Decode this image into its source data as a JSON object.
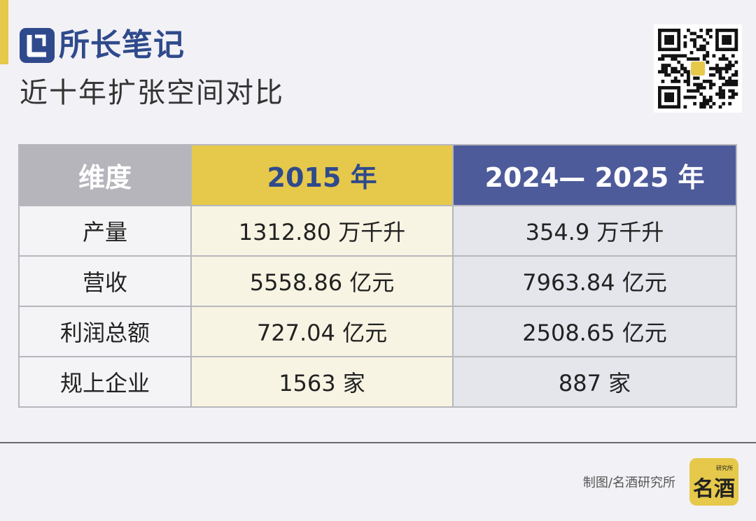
{
  "header": {
    "brand": "所长笔记",
    "subtitle": "近十年扩张空间对比",
    "accent_color": "#e6c84a",
    "brand_color": "#2f4a8c",
    "brand_icon": "brand-mark-icon",
    "qr_icon": "qr-code-icon"
  },
  "table": {
    "headers": [
      "维度",
      "2015 年",
      "2024— 2025 年"
    ],
    "header_colors": [
      "#b6b5bb",
      "#e6c84a",
      "#4d5b9a"
    ],
    "rows": [
      {
        "dim": "产量",
        "y2015": "1312.80 万千升",
        "y2024": "354.9 万千升"
      },
      {
        "dim": "营收",
        "y2015": "5558.86 亿元",
        "y2024": "7963.84 亿元"
      },
      {
        "dim": "利润总额",
        "y2015": "727.04 亿元",
        "y2024": "2508.65 亿元"
      },
      {
        "dim": "规上企业",
        "y2015": "1563 家",
        "y2024": "887 家"
      }
    ]
  },
  "footer": {
    "credit": "制图/名酒研究所",
    "logo_text": "名酒",
    "logo_small_text": "研究所",
    "logo_icon": "mingjiu-logo-icon"
  }
}
